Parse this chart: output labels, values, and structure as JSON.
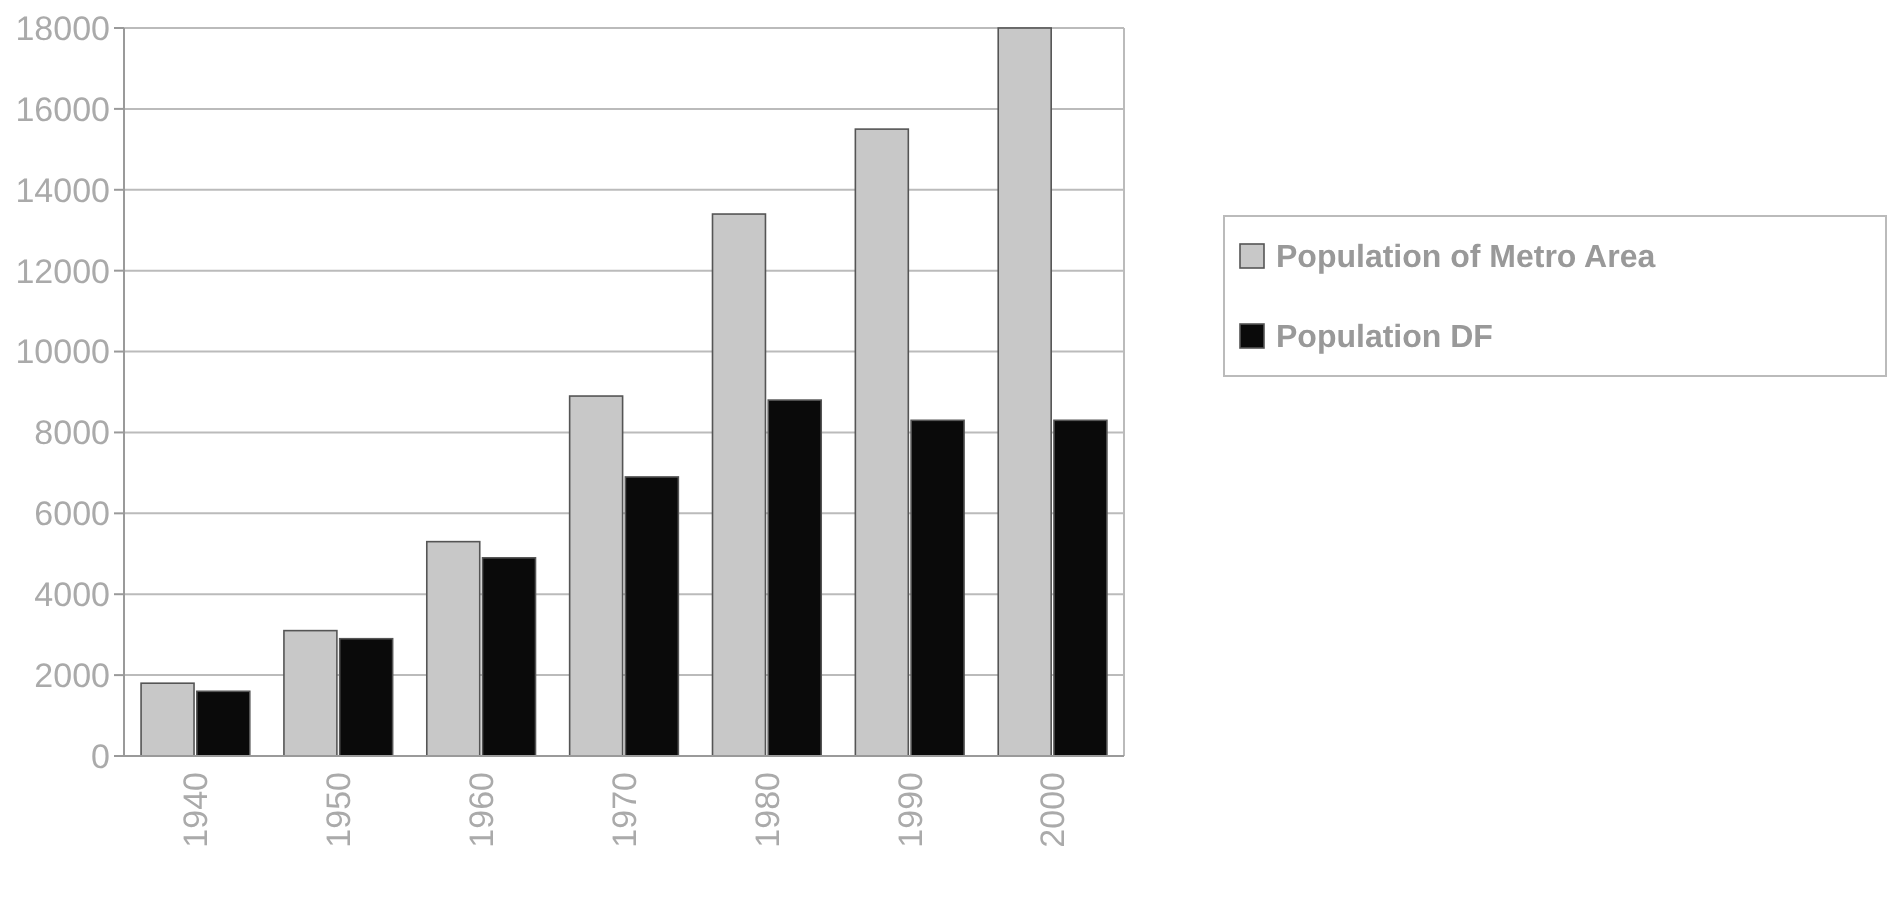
{
  "chart_data": {
    "type": "bar",
    "categories": [
      "1940",
      "1950",
      "1960",
      "1970",
      "1980",
      "1990",
      "2000"
    ],
    "series": [
      {
        "name": "Population of Metro Area",
        "color": "#c8c8c8",
        "values": [
          1800,
          3100,
          5300,
          8900,
          13400,
          15500,
          18000
        ]
      },
      {
        "name": "Population DF",
        "color": "#0a0a0a",
        "values": [
          1600,
          2900,
          4900,
          6900,
          8800,
          8300,
          8300
        ]
      }
    ],
    "ylim": [
      0,
      18000
    ],
    "yticks": [
      0,
      2000,
      4000,
      6000,
      8000,
      10000,
      12000,
      14000,
      16000,
      18000
    ],
    "grid": "y",
    "legend": "right"
  }
}
